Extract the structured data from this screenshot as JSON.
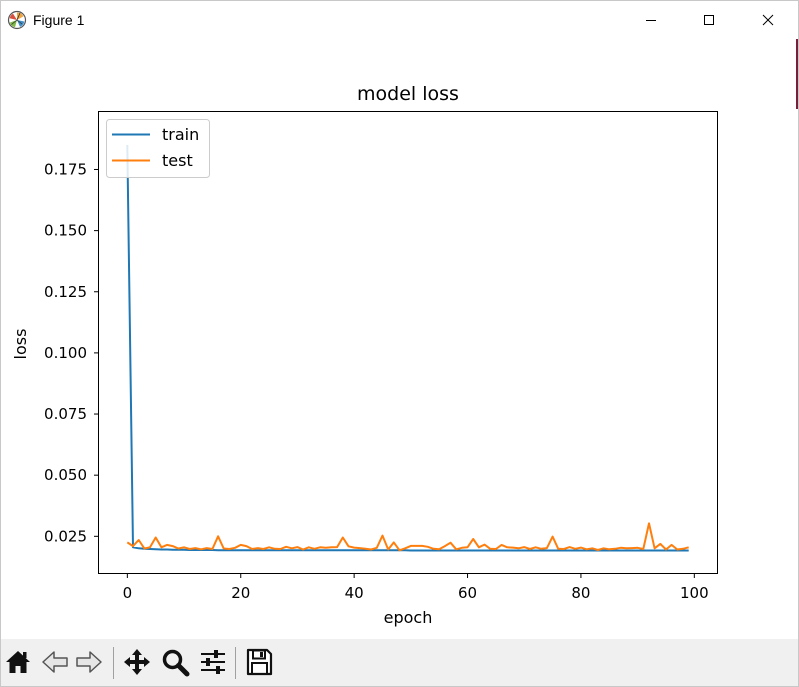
{
  "window": {
    "title": "Figure 1",
    "icons": {
      "app": "matplotlib-logo-icon",
      "minimize": "minimize-icon",
      "maximize": "maximize-icon",
      "close": "close-icon"
    }
  },
  "toolbar": {
    "items": [
      {
        "name": "home-button",
        "icon": "home-icon"
      },
      {
        "name": "back-button",
        "icon": "back-arrow-icon"
      },
      {
        "name": "forward-button",
        "icon": "forward-arrow-icon"
      },
      {
        "name": "pan-button",
        "icon": "move-icon"
      },
      {
        "name": "zoom-button",
        "icon": "magnifier-icon"
      },
      {
        "name": "configure-subplots-button",
        "icon": "sliders-icon"
      },
      {
        "name": "save-button",
        "icon": "floppy-disk-icon"
      }
    ]
  },
  "chart_data": {
    "type": "line",
    "title": "model loss",
    "xlabel": "epoch",
    "ylabel": "loss",
    "xlim": [
      -5,
      104
    ],
    "ylim": [
      0.01,
      0.1985
    ],
    "xticks": [
      0,
      20,
      40,
      60,
      80,
      100
    ],
    "xtick_labels": [
      "0",
      "20",
      "40",
      "60",
      "80",
      "100"
    ],
    "yticks": [
      0.025,
      0.05,
      0.075,
      0.1,
      0.125,
      0.15,
      0.175
    ],
    "ytick_labels": [
      "0.025",
      "0.050",
      "0.075",
      "0.100",
      "0.125",
      "0.150",
      "0.175"
    ],
    "grid": false,
    "legend_position": "top-left",
    "series": [
      {
        "name": "train",
        "color": "#1f77b4",
        "x": [
          0,
          1,
          2,
          3,
          4,
          5,
          6,
          7,
          8,
          9,
          10,
          11,
          12,
          13,
          14,
          15,
          16,
          17,
          18,
          19,
          20,
          21,
          22,
          23,
          24,
          25,
          26,
          27,
          28,
          29,
          30,
          31,
          32,
          33,
          34,
          35,
          36,
          37,
          38,
          39,
          40,
          41,
          42,
          43,
          44,
          45,
          46,
          47,
          48,
          49,
          50,
          51,
          52,
          53,
          54,
          55,
          56,
          57,
          58,
          59,
          60,
          61,
          62,
          63,
          64,
          65,
          66,
          67,
          68,
          69,
          70,
          71,
          72,
          73,
          74,
          75,
          76,
          77,
          78,
          79,
          80,
          81,
          82,
          83,
          84,
          85,
          86,
          87,
          88,
          89,
          90,
          91,
          92,
          93,
          94,
          95,
          96,
          97,
          98,
          99
        ],
        "y": [
          0.185,
          0.0205,
          0.0201,
          0.0199,
          0.0198,
          0.0197,
          0.0196,
          0.0196,
          0.0195,
          0.0195,
          0.0195,
          0.0194,
          0.0194,
          0.0194,
          0.0194,
          0.0194,
          0.0193,
          0.0193,
          0.0193,
          0.0193,
          0.0193,
          0.0193,
          0.0193,
          0.0193,
          0.0193,
          0.0193,
          0.0193,
          0.0193,
          0.0193,
          0.0193,
          0.0193,
          0.0193,
          0.0193,
          0.0193,
          0.0193,
          0.0193,
          0.0193,
          0.0193,
          0.0193,
          0.0193,
          0.0193,
          0.0193,
          0.0193,
          0.0193,
          0.0193,
          0.0193,
          0.0193,
          0.0193,
          0.0193,
          0.0193,
          0.0192,
          0.0192,
          0.0192,
          0.0192,
          0.0192,
          0.0192,
          0.0192,
          0.0192,
          0.0192,
          0.0192,
          0.0192,
          0.0192,
          0.0192,
          0.0192,
          0.0192,
          0.0192,
          0.0192,
          0.0192,
          0.0192,
          0.0192,
          0.0192,
          0.0192,
          0.0192,
          0.0192,
          0.0192,
          0.0192,
          0.0192,
          0.0192,
          0.0192,
          0.0192,
          0.0192,
          0.0192,
          0.0192,
          0.0192,
          0.0192,
          0.0192,
          0.0192,
          0.0192,
          0.0192,
          0.0192,
          0.0192,
          0.0192,
          0.0192,
          0.0192,
          0.0192,
          0.0192,
          0.0192,
          0.0192,
          0.0192,
          0.0192
        ]
      },
      {
        "name": "test",
        "color": "#ff7f0e",
        "x": [
          0,
          1,
          2,
          3,
          4,
          5,
          6,
          7,
          8,
          9,
          10,
          11,
          12,
          13,
          14,
          15,
          16,
          17,
          18,
          19,
          20,
          21,
          22,
          23,
          24,
          25,
          26,
          27,
          28,
          29,
          30,
          31,
          32,
          33,
          34,
          35,
          36,
          37,
          38,
          39,
          40,
          41,
          42,
          43,
          44,
          45,
          46,
          47,
          48,
          49,
          50,
          51,
          52,
          53,
          54,
          55,
          56,
          57,
          58,
          59,
          60,
          61,
          62,
          63,
          64,
          65,
          66,
          67,
          68,
          69,
          70,
          71,
          72,
          73,
          74,
          75,
          76,
          77,
          78,
          79,
          80,
          81,
          82,
          83,
          84,
          85,
          86,
          87,
          88,
          89,
          90,
          91,
          92,
          93,
          94,
          95,
          96,
          97,
          98,
          99
        ],
        "y": [
          0.0225,
          0.021,
          0.0235,
          0.02,
          0.0205,
          0.0245,
          0.0205,
          0.0215,
          0.021,
          0.02,
          0.0205,
          0.0198,
          0.0202,
          0.0197,
          0.0202,
          0.0198,
          0.025,
          0.02,
          0.0198,
          0.0203,
          0.0215,
          0.021,
          0.0198,
          0.0202,
          0.0198,
          0.0205,
          0.0199,
          0.0198,
          0.0207,
          0.0201,
          0.0206,
          0.0196,
          0.0205,
          0.0199,
          0.0205,
          0.0203,
          0.0205,
          0.0206,
          0.0245,
          0.0209,
          0.0204,
          0.0202,
          0.0199,
          0.0196,
          0.0203,
          0.0253,
          0.0196,
          0.0225,
          0.0193,
          0.0201,
          0.0211,
          0.0211,
          0.0211,
          0.0207,
          0.0199,
          0.0197,
          0.021,
          0.0224,
          0.0197,
          0.0203,
          0.0205,
          0.0239,
          0.0205,
          0.0216,
          0.0199,
          0.0198,
          0.0215,
          0.0205,
          0.0204,
          0.0201,
          0.0206,
          0.0198,
          0.0205,
          0.0199,
          0.0202,
          0.0249,
          0.0199,
          0.0198,
          0.0206,
          0.0199,
          0.0204,
          0.0197,
          0.0201,
          0.0194,
          0.0201,
          0.0197,
          0.0199,
          0.0203,
          0.0201,
          0.0202,
          0.0203,
          0.0198,
          0.0303,
          0.0201,
          0.0219,
          0.0196,
          0.0215,
          0.0196,
          0.0199,
          0.0205
        ]
      }
    ]
  }
}
